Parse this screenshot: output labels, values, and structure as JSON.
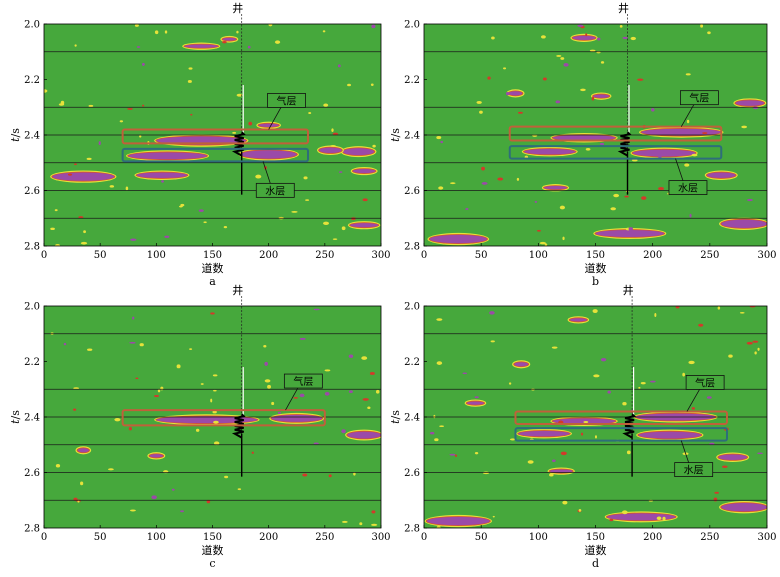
{
  "chart_data": [
    {
      "panel": "a",
      "type": "heatmap",
      "caption": "a",
      "xlabel": "道数",
      "ylabel_italic": "t",
      "ylabel_unit": "/s",
      "xlim": [
        0,
        300
      ],
      "ylim": [
        2.8,
        2.0
      ],
      "x_ticks": [
        "0",
        "50",
        "100",
        "150",
        "200",
        "250",
        "300"
      ],
      "y_ticks": [
        "2.0",
        "2.2",
        "2.4",
        "2.6",
        "2.8"
      ],
      "well_label": "井",
      "well_trace": 176,
      "gridlines_t": [
        2.1,
        2.3,
        2.4,
        2.5,
        2.6,
        2.7
      ],
      "colors": {
        "background": "#46a83c",
        "anomaly": "#9b4aa8",
        "edge": "#e6e23a",
        "core": "#d23a2a"
      },
      "boxes": [
        {
          "label": "气层",
          "x": [
            70,
            235
          ],
          "t": [
            2.38,
            2.43
          ],
          "color": "#c0603a"
        },
        {
          "label": "水层",
          "x": [
            70,
            235
          ],
          "t": [
            2.45,
            2.495
          ],
          "color": "#2e6e7a"
        }
      ],
      "anomalies": [
        {
          "x": 140,
          "t": 2.42,
          "w": 80,
          "h": 0.03
        },
        {
          "x": 200,
          "t": 2.47,
          "w": 50,
          "h": 0.03
        },
        {
          "x": 110,
          "t": 2.475,
          "w": 70,
          "h": 0.025
        },
        {
          "x": 35,
          "t": 2.55,
          "w": 55,
          "h": 0.03
        },
        {
          "x": 105,
          "t": 2.545,
          "w": 45,
          "h": 0.02
        },
        {
          "x": 280,
          "t": 2.46,
          "w": 28,
          "h": 0.025
        },
        {
          "x": 255,
          "t": 2.455,
          "w": 20,
          "h": 0.02
        },
        {
          "x": 140,
          "t": 2.08,
          "w": 30,
          "h": 0.012
        },
        {
          "x": 285,
          "t": 2.53,
          "w": 20,
          "h": 0.015
        },
        {
          "x": 285,
          "t": 2.725,
          "w": 25,
          "h": 0.015
        },
        {
          "x": 200,
          "t": 2.365,
          "w": 18,
          "h": 0.012
        },
        {
          "x": 165,
          "t": 2.055,
          "w": 12,
          "h": 0.01
        }
      ]
    },
    {
      "panel": "b",
      "type": "heatmap",
      "caption": "b",
      "xlabel": "道数",
      "ylabel_italic": "t",
      "ylabel_unit": "/s",
      "xlim": [
        0,
        300
      ],
      "ylim": [
        2.8,
        2.0
      ],
      "x_ticks": [
        "0",
        "50",
        "100",
        "150",
        "200",
        "250",
        "300"
      ],
      "y_ticks": [
        "2.0",
        "2.2",
        "2.4",
        "2.6",
        "2.8"
      ],
      "well_label": "井",
      "well_trace": 178,
      "gridlines_t": [
        2.1,
        2.3,
        2.4,
        2.5,
        2.6,
        2.7
      ],
      "colors": {
        "background": "#46a83c",
        "anomaly": "#9b4aa8",
        "edge": "#e6e23a",
        "core": "#d23a2a"
      },
      "boxes": [
        {
          "label": "气层",
          "x": [
            75,
            260
          ],
          "t": [
            2.37,
            2.42
          ],
          "color": "#c0603a"
        },
        {
          "label": "水层",
          "x": [
            75,
            260
          ],
          "t": [
            2.44,
            2.485
          ],
          "color": "#2e6e7a"
        }
      ],
      "anomalies": [
        {
          "x": 225,
          "t": 2.39,
          "w": 70,
          "h": 0.025
        },
        {
          "x": 140,
          "t": 2.41,
          "w": 55,
          "h": 0.02
        },
        {
          "x": 110,
          "t": 2.46,
          "w": 45,
          "h": 0.02
        },
        {
          "x": 210,
          "t": 2.465,
          "w": 55,
          "h": 0.025
        },
        {
          "x": 30,
          "t": 2.775,
          "w": 50,
          "h": 0.03
        },
        {
          "x": 180,
          "t": 2.755,
          "w": 60,
          "h": 0.025
        },
        {
          "x": 280,
          "t": 2.72,
          "w": 40,
          "h": 0.03
        },
        {
          "x": 285,
          "t": 2.285,
          "w": 25,
          "h": 0.02
        },
        {
          "x": 80,
          "t": 2.25,
          "w": 12,
          "h": 0.015
        },
        {
          "x": 155,
          "t": 2.26,
          "w": 14,
          "h": 0.012
        },
        {
          "x": 260,
          "t": 2.545,
          "w": 25,
          "h": 0.02
        },
        {
          "x": 140,
          "t": 2.05,
          "w": 20,
          "h": 0.015
        },
        {
          "x": 115,
          "t": 2.59,
          "w": 20,
          "h": 0.012
        }
      ]
    },
    {
      "panel": "c",
      "type": "heatmap",
      "caption": "c",
      "xlabel": "道数",
      "ylabel_italic": "t",
      "ylabel_unit": "/s",
      "xlim": [
        0,
        300
      ],
      "ylim": [
        2.8,
        2.0
      ],
      "x_ticks": [
        "0",
        "50",
        "100",
        "150",
        "200",
        "250",
        "300"
      ],
      "y_ticks": [
        "2.0",
        "2.2",
        "2.4",
        "2.6",
        "2.8"
      ],
      "well_label": "井",
      "well_trace": 176,
      "gridlines_t": [
        2.1,
        2.3,
        2.4,
        2.5,
        2.6,
        2.7
      ],
      "colors": {
        "background": "#46a83c",
        "anomaly": "#9b4aa8",
        "edge": "#e6e23a",
        "core": "#d23a2a"
      },
      "boxes": [
        {
          "label": "气层",
          "x": [
            70,
            250
          ],
          "t": [
            2.375,
            2.43
          ],
          "color": "#c0603a"
        }
      ],
      "anomalies": [
        {
          "x": 145,
          "t": 2.41,
          "w": 90,
          "h": 0.025
        },
        {
          "x": 225,
          "t": 2.405,
          "w": 45,
          "h": 0.025
        },
        {
          "x": 285,
          "t": 2.465,
          "w": 30,
          "h": 0.025
        },
        {
          "x": 35,
          "t": 2.52,
          "w": 10,
          "h": 0.015
        },
        {
          "x": 100,
          "t": 2.54,
          "w": 12,
          "h": 0.012
        }
      ]
    },
    {
      "panel": "d",
      "type": "heatmap",
      "caption": "d",
      "xlabel": "道数",
      "ylabel_italic": "t",
      "ylabel_unit": "/s",
      "xlim": [
        0,
        300
      ],
      "ylim": [
        2.8,
        2.0
      ],
      "x_ticks": [
        "0",
        "50",
        "100",
        "150",
        "200",
        "250",
        "300"
      ],
      "y_ticks": [
        "2.0",
        "2.2",
        "2.4",
        "2.6",
        "2.8"
      ],
      "well_label": "井",
      "well_trace": 182,
      "gridlines_t": [
        2.1,
        2.3,
        2.4,
        2.5,
        2.6,
        2.7
      ],
      "colors": {
        "background": "#46a83c",
        "anomaly": "#9b4aa8",
        "edge": "#e6e23a",
        "core": "#d23a2a"
      },
      "boxes": [
        {
          "label": "气层",
          "x": [
            80,
            265
          ],
          "t": [
            2.38,
            2.425
          ],
          "color": "#c0603a"
        },
        {
          "label": "水层",
          "x": [
            80,
            265
          ],
          "t": [
            2.44,
            2.485
          ],
          "color": "#2e6e7a"
        }
      ],
      "anomalies": [
        {
          "x": 220,
          "t": 2.4,
          "w": 70,
          "h": 0.025
        },
        {
          "x": 140,
          "t": 2.415,
          "w": 55,
          "h": 0.02
        },
        {
          "x": 105,
          "t": 2.46,
          "w": 45,
          "h": 0.02
        },
        {
          "x": 215,
          "t": 2.465,
          "w": 55,
          "h": 0.025
        },
        {
          "x": 30,
          "t": 2.775,
          "w": 55,
          "h": 0.03
        },
        {
          "x": 190,
          "t": 2.76,
          "w": 60,
          "h": 0.025
        },
        {
          "x": 280,
          "t": 2.725,
          "w": 40,
          "h": 0.03
        },
        {
          "x": 85,
          "t": 2.21,
          "w": 12,
          "h": 0.015
        },
        {
          "x": 135,
          "t": 2.05,
          "w": 15,
          "h": 0.012
        },
        {
          "x": 270,
          "t": 2.545,
          "w": 25,
          "h": 0.02
        },
        {
          "x": 120,
          "t": 2.595,
          "w": 20,
          "h": 0.012
        },
        {
          "x": 45,
          "t": 2.35,
          "w": 15,
          "h": 0.012
        }
      ]
    }
  ]
}
